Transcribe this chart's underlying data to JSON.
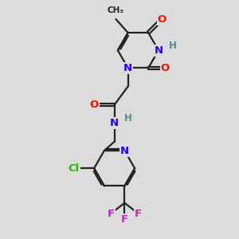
{
  "bg_color": "#dcdcdc",
  "bond_color": "#222222",
  "bond_width": 1.6,
  "atom_colors": {
    "O": "#ee1100",
    "N": "#2200ee",
    "H": "#558888",
    "C": "#222222",
    "Cl": "#22bb00",
    "F": "#cc22cc"
  },
  "font_size": 9.5
}
